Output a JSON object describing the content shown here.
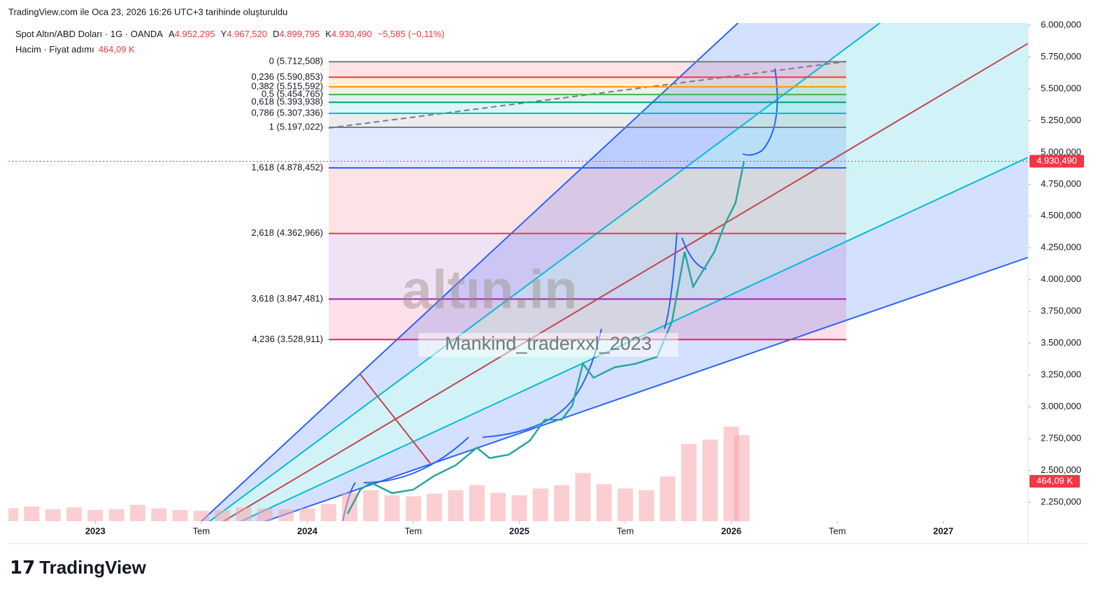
{
  "header": {
    "created": "TradingView.com ile Oca 23, 2026 16:26 UTC+3 tarihinde oluşturuldu",
    "symbol": "Spot Altın/ABD Doları · 1G · OANDA",
    "ohlc": [
      {
        "key": "A",
        "value": 4952.295,
        "label": "4.952,295"
      },
      {
        "key": "Y",
        "value": 4967.52,
        "label": "4.967,520"
      },
      {
        "key": "D",
        "value": 4899.795,
        "label": "4.899,795"
      },
      {
        "key": "K",
        "value": 4930.49,
        "label": "4.930,490"
      }
    ],
    "change": "−5,585 (−0,11%)",
    "volume_title": "Hacim · Fiyat adımı"
  },
  "watermark": {
    "brand": "altın.in",
    "author": "Mankind_traderxxl_2023"
  },
  "footer": {
    "logo": "TradingView"
  },
  "chart_data": {
    "type": "line",
    "xlim": [
      2022.59,
      2027.4
    ],
    "xticks": [
      2023,
      {
        "value": 2023.5,
        "label": "Tem"
      },
      2024,
      {
        "value": 2024.5,
        "label": "Tem"
      },
      2025,
      {
        "value": 2025.5,
        "label": "Tem"
      },
      2026,
      {
        "value": 2026.5,
        "label": "Tem"
      },
      2027
    ],
    "ylim": [
      2101.5,
      6016.5
    ],
    "yticks": [
      {
        "value": 6000,
        "label": "6.000,000"
      },
      {
        "value": 5750,
        "label": "5.750,000"
      },
      {
        "value": 5500,
        "label": "5.500,000"
      },
      {
        "value": 5250,
        "label": "5.250,000"
      },
      {
        "value": 5000,
        "label": "5.000,000"
      },
      {
        "value": 4750,
        "label": "4.750,000"
      },
      {
        "value": 4500,
        "label": "4.500,000"
      },
      {
        "value": 4250,
        "label": "4.250,000"
      },
      {
        "value": 4000,
        "label": "4.000,000"
      },
      {
        "value": 3750,
        "label": "3.750,000"
      },
      {
        "value": 3500,
        "label": "3.500,000"
      },
      {
        "value": 3250,
        "label": "3.250,000"
      },
      {
        "value": 3000,
        "label": "3.000,000"
      },
      {
        "value": 2750,
        "label": "2.750,000"
      },
      {
        "value": 2500,
        "label": "2.500,000"
      },
      {
        "value": 2250,
        "label": "2.250,000"
      }
    ],
    "y2lim": [
      0,
      5800
    ],
    "price": {
      "color": "#26a69a",
      "x": [
        2024.19,
        2024.25,
        2024.3,
        2024.4,
        2024.5,
        2024.6,
        2024.7,
        2024.8,
        2024.86,
        2024.95,
        2025.05,
        2025.12,
        2025.2,
        2025.25,
        2025.3,
        2025.35,
        2025.45,
        2025.55,
        2025.65,
        2025.72,
        2025.78,
        2025.82,
        2025.86,
        2025.92,
        2025.97,
        2026.02,
        2026.06
      ],
      "values": [
        2160,
        2349,
        2404,
        2322,
        2349,
        2459,
        2541,
        2679,
        2597,
        2624,
        2734,
        2899,
        2899,
        3009,
        3339,
        3229,
        3311,
        3339,
        3394,
        3669,
        4218,
        3944,
        4054,
        4218,
        4438,
        4603,
        4930.49
      ]
    },
    "last_price": {
      "value": 4930.49,
      "label": "4.930,490",
      "color": "#f23645"
    },
    "volume": {
      "axis": "y2",
      "color": "#f7a6ad",
      "x": [
        2022.6,
        2022.7,
        2022.8,
        2022.9,
        2023.0,
        2023.1,
        2023.2,
        2023.3,
        2023.4,
        2023.5,
        2023.6,
        2023.7,
        2023.8,
        2023.9,
        2024.0,
        2024.1,
        2024.2,
        2024.3,
        2024.4,
        2024.5,
        2024.6,
        2024.7,
        2024.8,
        2024.9,
        2025.0,
        2025.1,
        2025.2,
        2025.3,
        2025.4,
        2025.5,
        2025.6,
        2025.7,
        2025.8,
        2025.9,
        2026.0,
        2026.05
      ],
      "values": [
        150,
        170,
        140,
        160,
        130,
        140,
        190,
        150,
        130,
        120,
        130,
        160,
        150,
        140,
        150,
        200,
        330,
        360,
        300,
        290,
        320,
        360,
        420,
        330,
        300,
        380,
        420,
        560,
        430,
        380,
        360,
        520,
        900,
        950,
        1100,
        1000
      ]
    },
    "volume_last": {
      "value": 464.09,
      "label": "464,09 K",
      "color": "#f23645"
    },
    "fib_levels": [
      {
        "value": 5712.508,
        "label": "0 (5.712,508)",
        "color": "#787b86"
      },
      {
        "value": 5590.853,
        "label": "0,236 (5.590,853)",
        "color": "#f23645"
      },
      {
        "value": 5515.592,
        "label": "0,382 (5.515,592)",
        "color": "#ff9800"
      },
      {
        "value": 5454.765,
        "label": "0,5 (5.454,765)",
        "color": "#4caf50"
      },
      {
        "value": 5393.938,
        "label": "0,618 (5.393,938)",
        "color": "#089981"
      },
      {
        "value": 5307.336,
        "label": "0,786 (5.307,336)",
        "color": "#00bcd4"
      },
      {
        "value": 5197.022,
        "label": "1 (5.197,022)",
        "color": "#787b86"
      },
      {
        "value": 4878.452,
        "label": "1,618 (4.878,452)",
        "color": "#2962ff"
      },
      {
        "value": 4362.966,
        "label": "2,618 (4.362,966)",
        "color": "#f23645"
      },
      {
        "value": 3847.481,
        "label": "3,618 (3.847,481)",
        "color": "#9c27b0"
      },
      {
        "value": 3528.911,
        "label": "4,236 (3.528,911)",
        "color": "#e91e63"
      }
    ]
  }
}
